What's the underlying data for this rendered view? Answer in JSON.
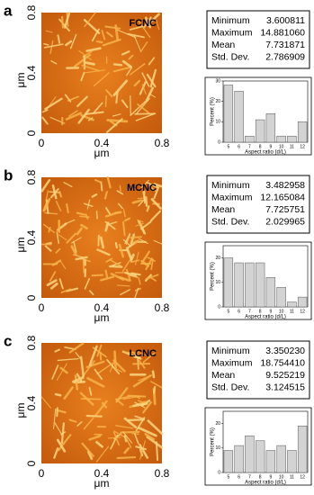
{
  "panels": [
    {
      "letter": "a",
      "sample": "FCNC",
      "xticks": [
        0,
        0.4,
        0.8
      ],
      "yticks": [
        0,
        0.4,
        0.8
      ],
      "xlabel": "μm",
      "ylabel": "μm",
      "stats": [
        [
          "Minimum",
          "3.600811"
        ],
        [
          "Maximum",
          "14.881060"
        ],
        [
          "Mean",
          "7.731871"
        ],
        [
          "Std. Dev.",
          "2.786909"
        ]
      ]
    },
    {
      "letter": "b",
      "sample": "MCNC",
      "xticks": [
        0,
        0.4,
        0.8
      ],
      "yticks": [
        0,
        0.4,
        0.8
      ],
      "xlabel": "μm",
      "ylabel": "μm",
      "stats": [
        [
          "Minimum",
          "3.482958"
        ],
        [
          "Maximum",
          "12.165084"
        ],
        [
          "Mean",
          "7.725751"
        ],
        [
          "Std. Dev.",
          "2.029965"
        ]
      ]
    },
    {
      "letter": "c",
      "sample": "LCNC",
      "xticks": [
        0,
        0.4,
        0.8
      ],
      "yticks": [
        0,
        0.4,
        0.8
      ],
      "xlabel": "μm",
      "ylabel": "μm",
      "stats": [
        [
          "Minimum",
          "3.350230"
        ],
        [
          "Maximum",
          "18.754410"
        ],
        [
          "Mean",
          "9.525219"
        ],
        [
          "Std. Dev.",
          "3.124515"
        ]
      ]
    }
  ],
  "chart_data": [
    {
      "type": "bar",
      "xlabel": "Aspect ratio (d/L)",
      "ylabel": "Percent (%)",
      "color": "#d3d3d3",
      "categories": [
        "5",
        "6",
        "7",
        "8",
        "9",
        "10",
        "11",
        "12"
      ],
      "values": [
        28,
        25,
        3,
        11,
        14,
        3,
        3,
        10
      ],
      "ylim": [
        0,
        30
      ],
      "yticks": [
        0,
        10,
        20,
        30
      ]
    },
    {
      "type": "bar",
      "xlabel": "Aspect ratio (d/L)",
      "ylabel": "Percent (%)",
      "color": "#d3d3d3",
      "categories": [
        "5",
        "6",
        "7",
        "8",
        "9",
        "10",
        "11",
        "12"
      ],
      "values": [
        20,
        18,
        18,
        18,
        12,
        8,
        2,
        4
      ],
      "ylim": [
        0,
        25
      ],
      "yticks": [
        0,
        10,
        20
      ]
    },
    {
      "type": "bar",
      "xlabel": "Aspect ratio (d/L)",
      "ylabel": "Percent (%)",
      "color": "#d3d3d3",
      "categories": [
        "5",
        "6",
        "7",
        "8",
        "9",
        "10",
        "11",
        "12"
      ],
      "values": [
        9,
        11,
        15,
        13,
        9,
        11,
        9,
        19
      ],
      "ylim": [
        0,
        25
      ],
      "yticks": [
        0,
        10,
        20
      ]
    }
  ]
}
